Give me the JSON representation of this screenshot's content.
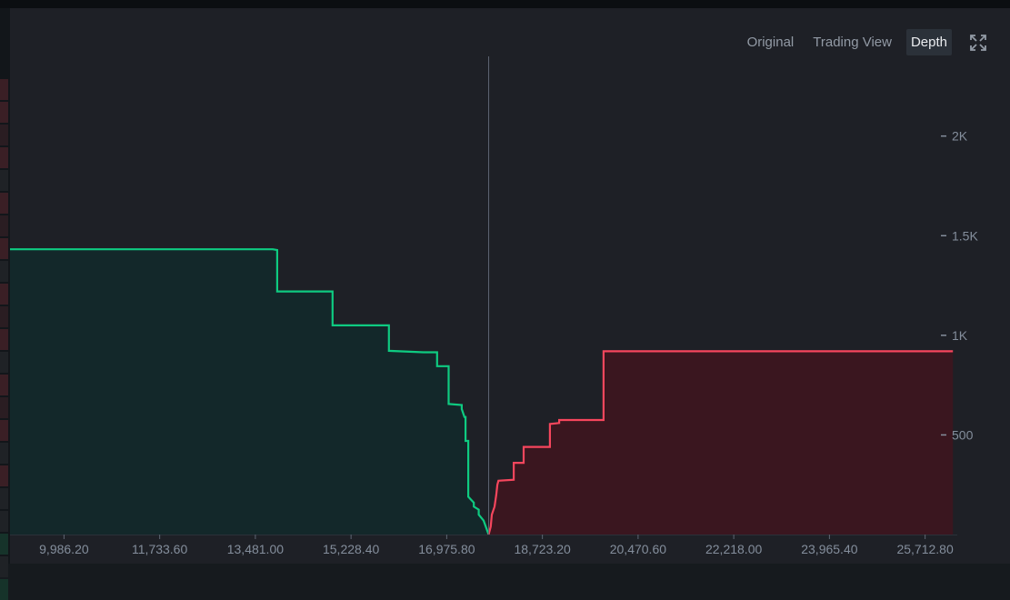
{
  "toolbar": {
    "tabs": [
      {
        "label": "Original",
        "active": false
      },
      {
        "label": "Trading View",
        "active": false
      },
      {
        "label": "Depth",
        "active": true
      }
    ],
    "fullscreen_icon": "expand-icon"
  },
  "colors": {
    "background": "#1e2026",
    "bid_line": "#0ecb81",
    "bid_fill": "#13282a",
    "ask_line": "#f6465d",
    "ask_fill": "#3a161f",
    "axis_text": "#848e9c"
  },
  "chart_data": {
    "type": "area",
    "title": "",
    "xlabel": "",
    "ylabel": "",
    "xlim": [
      9000,
      26300
    ],
    "ylim": [
      0,
      2400
    ],
    "x_ticks": [
      9986.2,
      11733.6,
      13481.0,
      15228.4,
      16975.8,
      18723.2,
      20470.6,
      22218.0,
      23965.4,
      25712.8
    ],
    "x_tick_labels": [
      "9,986.20",
      "11,733.60",
      "13,481.00",
      "15,228.40",
      "16,975.80",
      "18,723.20",
      "20,470.60",
      "22,218.00",
      "23,965.40",
      "25,712.80"
    ],
    "y_ticks": [
      500,
      1000,
      1500,
      2000
    ],
    "y_tick_labels": [
      "500",
      "1K",
      "1.5K",
      "2K"
    ],
    "mid_price": 17742,
    "grid": false,
    "series": [
      {
        "side": "bid",
        "x": [
          9000,
          13800,
          13880,
          13880,
          14890,
          14890,
          15920,
          15920,
          16550,
          16800,
          16800,
          17010,
          17010,
          17250,
          17250,
          17300,
          17320,
          17320,
          17370,
          17370,
          17470,
          17470,
          17560,
          17560,
          17650,
          17742
        ],
        "values": [
          1432,
          1432,
          1428,
          1220,
          1220,
          1050,
          1050,
          922,
          915,
          915,
          845,
          845,
          655,
          650,
          630,
          590,
          590,
          470,
          470,
          190,
          160,
          140,
          125,
          100,
          70,
          0
        ]
      },
      {
        "side": "ask",
        "x": [
          17742,
          17780,
          17800,
          17850,
          17880,
          17900,
          17920,
          18200,
          18200,
          18380,
          18380,
          18860,
          18860,
          19030,
          19030,
          19840,
          19840,
          26220
        ],
        "values": [
          0,
          40,
          100,
          140,
          200,
          250,
          270,
          275,
          360,
          360,
          440,
          440,
          555,
          560,
          575,
          575,
          920,
          920
        ]
      }
    ]
  }
}
